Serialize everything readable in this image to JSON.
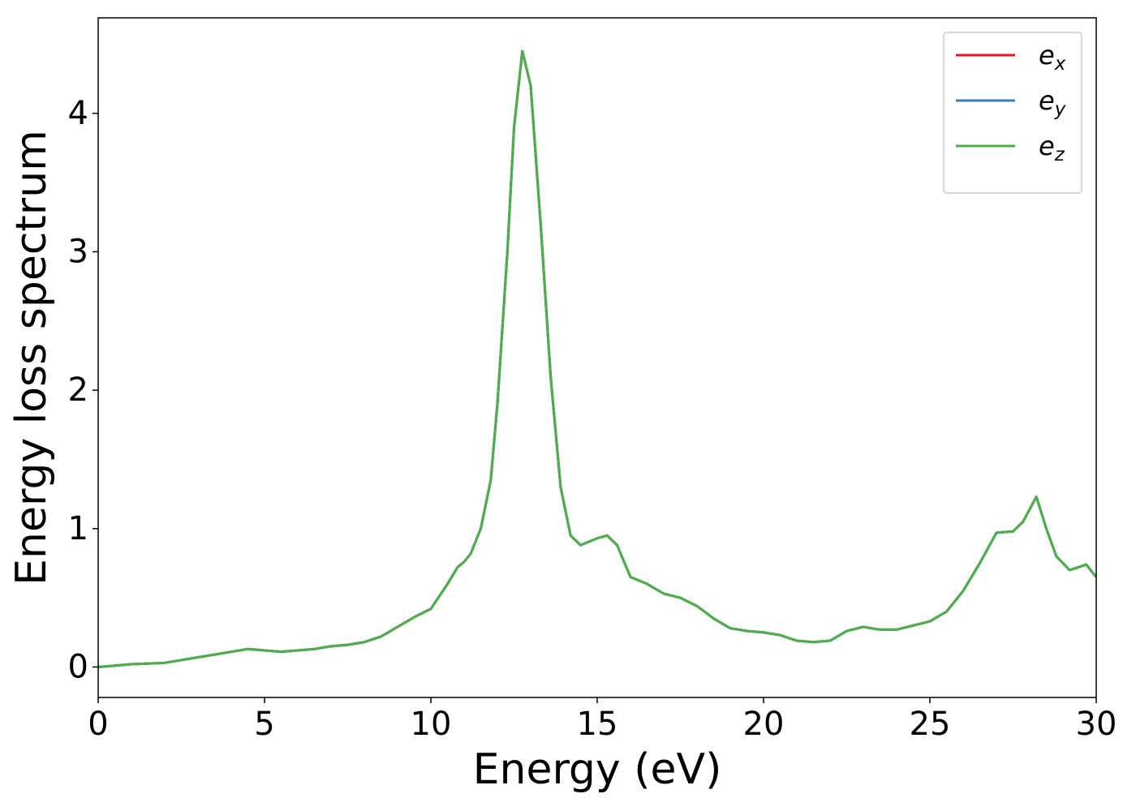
{
  "chart_data": {
    "type": "line",
    "xlabel": "Energy (eV)",
    "ylabel": "Energy loss spectrum",
    "x": [
      0,
      0.5,
      1,
      2,
      2.5,
      3,
      3.5,
      4,
      4.5,
      5,
      5.5,
      6,
      6.5,
      7,
      7.5,
      8,
      8.5,
      9,
      9.5,
      10,
      10.5,
      10.8,
      11,
      11.2,
      11.5,
      11.8,
      12,
      12.3,
      12.5,
      12.75,
      13,
      13.3,
      13.6,
      13.9,
      14.2,
      14.5,
      15,
      15.3,
      15.6,
      16,
      16.5,
      17,
      17.5,
      18,
      18.5,
      19,
      19.5,
      20,
      20.5,
      21,
      21.5,
      22,
      22.5,
      23,
      23.5,
      24,
      24.5,
      25,
      25.5,
      26,
      26.5,
      27,
      27.5,
      27.8,
      28.2,
      28.5,
      28.8,
      29.2,
      29.7,
      30
    ],
    "series": [
      {
        "name": "e_x",
        "color": "#e41a1c",
        "values": [
          0.0,
          0.01,
          0.02,
          0.03,
          0.05,
          0.07,
          0.09,
          0.11,
          0.13,
          0.12,
          0.11,
          0.12,
          0.13,
          0.15,
          0.16,
          0.18,
          0.22,
          0.29,
          0.36,
          0.42,
          0.6,
          0.72,
          0.76,
          0.82,
          1.0,
          1.35,
          1.9,
          3.0,
          3.9,
          4.45,
          4.2,
          3.2,
          2.1,
          1.3,
          0.95,
          0.88,
          0.93,
          0.95,
          0.88,
          0.65,
          0.6,
          0.53,
          0.5,
          0.44,
          0.35,
          0.28,
          0.26,
          0.25,
          0.23,
          0.19,
          0.18,
          0.19,
          0.26,
          0.29,
          0.27,
          0.27,
          0.3,
          0.33,
          0.4,
          0.55,
          0.75,
          0.97,
          0.98,
          1.05,
          1.23,
          1.0,
          0.8,
          0.7,
          0.74,
          0.65
        ]
      },
      {
        "name": "e_y",
        "color": "#377eb8",
        "values": [
          0.0,
          0.01,
          0.02,
          0.03,
          0.05,
          0.07,
          0.09,
          0.11,
          0.13,
          0.12,
          0.11,
          0.12,
          0.13,
          0.15,
          0.16,
          0.18,
          0.22,
          0.29,
          0.36,
          0.42,
          0.6,
          0.72,
          0.76,
          0.82,
          1.0,
          1.35,
          1.9,
          3.0,
          3.9,
          4.45,
          4.2,
          3.2,
          2.1,
          1.3,
          0.95,
          0.88,
          0.93,
          0.95,
          0.88,
          0.65,
          0.6,
          0.53,
          0.5,
          0.44,
          0.35,
          0.28,
          0.26,
          0.25,
          0.23,
          0.19,
          0.18,
          0.19,
          0.26,
          0.29,
          0.27,
          0.27,
          0.3,
          0.33,
          0.4,
          0.55,
          0.75,
          0.97,
          0.98,
          1.05,
          1.23,
          1.0,
          0.8,
          0.7,
          0.74,
          0.65
        ]
      },
      {
        "name": "e_z",
        "color": "#4daf4a",
        "values": [
          0.0,
          0.01,
          0.02,
          0.03,
          0.05,
          0.07,
          0.09,
          0.11,
          0.13,
          0.12,
          0.11,
          0.12,
          0.13,
          0.15,
          0.16,
          0.18,
          0.22,
          0.29,
          0.36,
          0.42,
          0.6,
          0.72,
          0.76,
          0.82,
          1.0,
          1.35,
          1.9,
          3.0,
          3.9,
          4.45,
          4.2,
          3.2,
          2.1,
          1.3,
          0.95,
          0.88,
          0.93,
          0.95,
          0.88,
          0.65,
          0.6,
          0.53,
          0.5,
          0.44,
          0.35,
          0.28,
          0.26,
          0.25,
          0.23,
          0.19,
          0.18,
          0.19,
          0.26,
          0.29,
          0.27,
          0.27,
          0.3,
          0.33,
          0.4,
          0.55,
          0.75,
          0.97,
          0.98,
          1.05,
          1.23,
          1.0,
          0.8,
          0.7,
          0.74,
          0.65
        ]
      }
    ],
    "xlim": [
      0,
      30
    ],
    "xticks": [
      0,
      5,
      10,
      15,
      20,
      25,
      30
    ],
    "ylim": [
      -0.22,
      4.69
    ],
    "yticks": [
      0,
      1,
      2,
      3,
      4
    ],
    "grid": false,
    "legend": "upper right"
  }
}
